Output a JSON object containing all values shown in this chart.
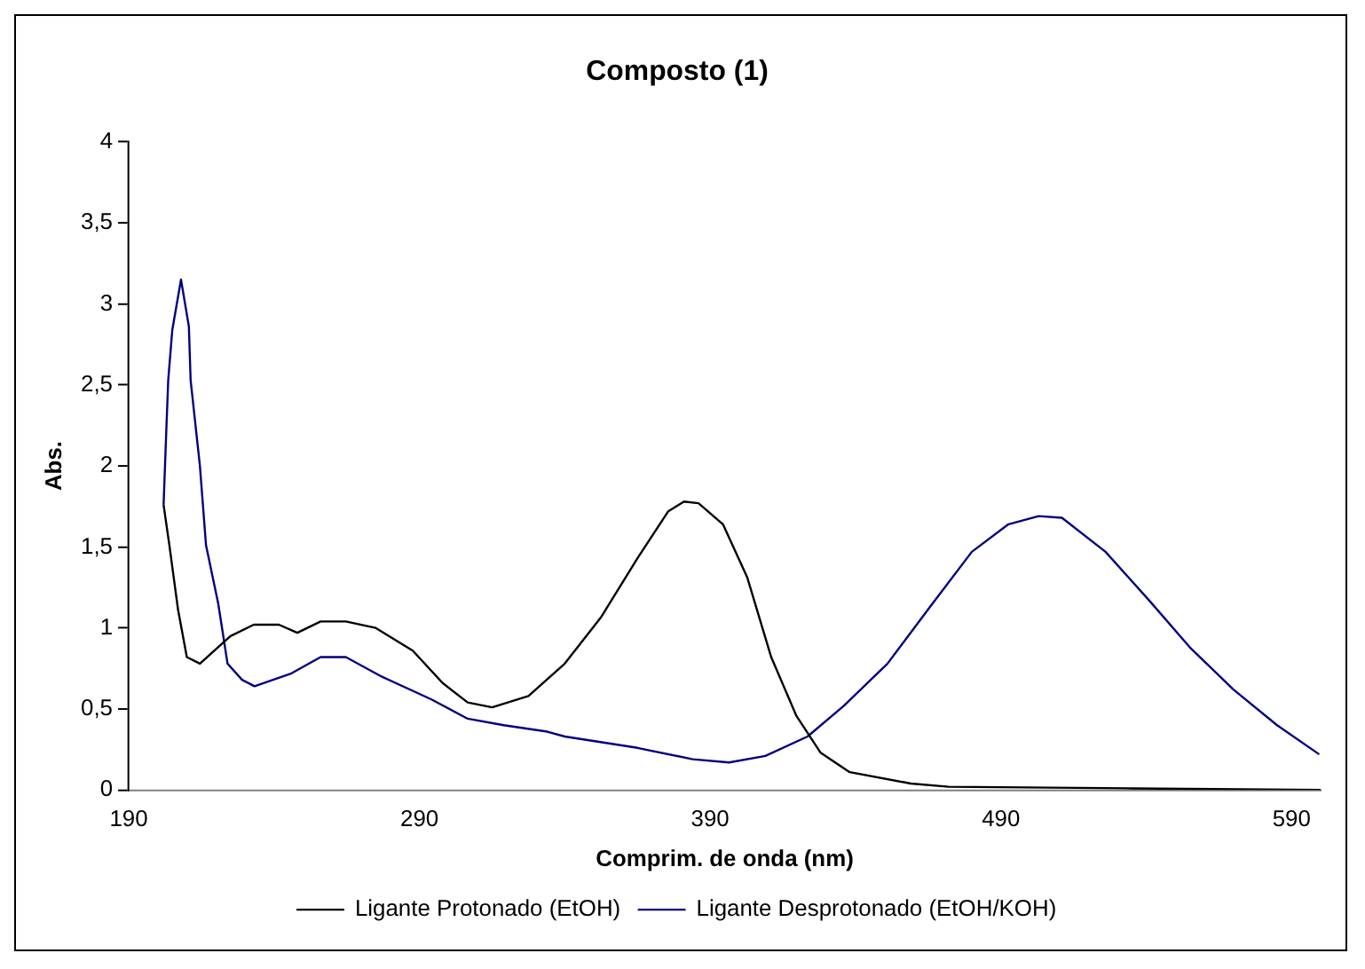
{
  "chart_data": {
    "type": "line",
    "title": "Composto (1)",
    "xlabel": "Comprim. de onda (nm)",
    "ylabel": "Abs.",
    "xlim": [
      190,
      600
    ],
    "xticks": [
      190,
      290,
      390,
      490,
      590
    ],
    "ylim": [
      0,
      4
    ],
    "yticks": [
      0,
      {
        "value": 0.5,
        "label": "0,5"
      },
      1,
      {
        "value": 1.5,
        "label": "1,5"
      },
      2,
      {
        "value": 2.5,
        "label": "2,5"
      },
      3,
      {
        "value": 3.5,
        "label": "3,5"
      },
      4
    ],
    "grid": false,
    "legend": "bottom",
    "marker": "none",
    "line_style": "solid",
    "series": [
      {
        "name": "Ligante Protonado (EtOH)",
        "color": "#000000",
        "x": [
          202,
          204,
          207,
          210,
          214.5,
          225,
          233,
          241.7,
          248,
          256,
          264.7,
          275,
          287.7,
          298,
          306.6,
          315,
          327.5,
          340,
          352.6,
          365,
          375.6,
          381,
          386,
          394.4,
          402.8,
          411,
          419.6,
          428,
          438,
          459,
          472,
          535,
          600
        ],
        "values": [
          1.76,
          1.51,
          1.11,
          0.82,
          0.78,
          0.95,
          1.02,
          1.02,
          0.97,
          1.04,
          1.04,
          1.0,
          0.86,
          0.66,
          0.54,
          0.51,
          0.58,
          0.78,
          1.07,
          1.43,
          1.72,
          1.78,
          1.77,
          1.64,
          1.31,
          0.82,
          0.46,
          0.23,
          0.11,
          0.04,
          0.02,
          0.01,
          0.0
        ]
      },
      {
        "name": "Ligante Desprotonado (EtOH/KOH)",
        "color": "#000080",
        "x": [
          202,
          203,
          203.6,
          205,
          208,
          210.7,
          211.3,
          214.5,
          216.6,
          220.8,
          224,
          229,
          233.3,
          246,
          256,
          264.7,
          277,
          294,
          306.6,
          319,
          334,
          340,
          365,
          384,
          396.5,
          409,
          423.5,
          436,
          451,
          465.6,
          480,
          492.6,
          503,
          511,
          526,
          541,
          555,
          570,
          585,
          599.5
        ],
        "values": [
          1.76,
          2.25,
          2.53,
          2.84,
          3.15,
          2.86,
          2.53,
          2.0,
          1.51,
          1.15,
          0.78,
          0.68,
          0.64,
          0.72,
          0.82,
          0.82,
          0.7,
          0.56,
          0.44,
          0.4,
          0.36,
          0.33,
          0.26,
          0.19,
          0.17,
          0.21,
          0.33,
          0.52,
          0.78,
          1.13,
          1.47,
          1.64,
          1.69,
          1.68,
          1.47,
          1.17,
          0.88,
          0.62,
          0.4,
          0.22
        ]
      }
    ]
  }
}
